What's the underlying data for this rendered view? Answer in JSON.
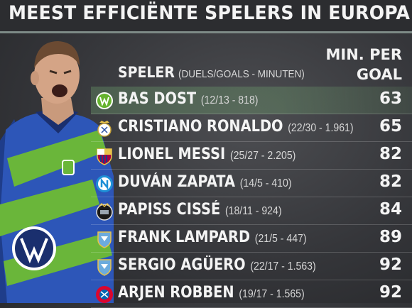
{
  "title": "MEEST EFFICIËNTE SPELERS IN EUROPA",
  "header": {
    "player_label": "SPELER",
    "player_sub": "(DUELS/GOALS - MINUTEN)",
    "value_label_line1": "MIN. PER",
    "value_label_line2": "GOAL"
  },
  "colors": {
    "highlight_row": "#5f8f5c",
    "wolfsburg_green": "#65b32e",
    "text": "#f4f4f4",
    "background": "#3a3b3f"
  },
  "rows": [
    {
      "name": "BAS DOST",
      "stats": "(12/13 - 818)",
      "value": "63",
      "club_icon": "vfl-wolfsburg-logo",
      "highlight": true
    },
    {
      "name": "CRISTIANO RONALDO",
      "stats": "(22/30 - 1.961)",
      "value": "65",
      "club_icon": "real-madrid-logo",
      "highlight": false
    },
    {
      "name": "LIONEL MESSI",
      "stats": "(25/27 - 2.205)",
      "value": "82",
      "club_icon": "fc-barcelona-logo",
      "highlight": false
    },
    {
      "name": "DUVÁN ZAPATA",
      "stats": "(14/5 - 410)",
      "value": "82",
      "club_icon": "ssc-napoli-logo",
      "highlight": false
    },
    {
      "name": "PAPISS CISSÉ",
      "stats": "(18/11 - 924)",
      "value": "84",
      "club_icon": "newcastle-united-logo",
      "highlight": false
    },
    {
      "name": "FRANK LAMPARD",
      "stats": "(21/5 - 447)",
      "value": "89",
      "club_icon": "manchester-city-logo",
      "highlight": false
    },
    {
      "name": "SERGIO AGÜERO",
      "stats": "(22/17 - 1.563)",
      "value": "92",
      "club_icon": "manchester-city-logo",
      "highlight": false
    },
    {
      "name": "ARJEN ROBBEN",
      "stats": "(19/17 - 1.565)",
      "value": "92",
      "club_icon": "fc-bayern-logo",
      "highlight": false
    }
  ]
}
